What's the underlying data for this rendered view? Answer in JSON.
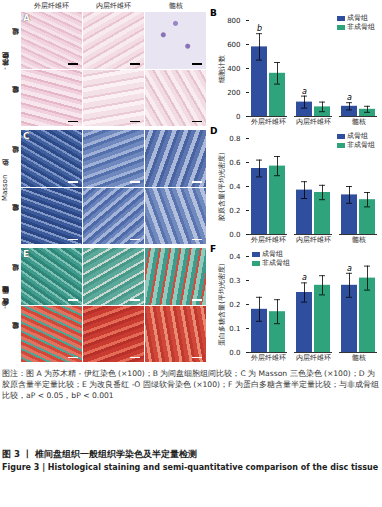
{
  "figure": {
    "columns": [
      "外层纤维环",
      "内层纤维环",
      "髓核"
    ],
    "rows": [
      "成骨组",
      "非成骨组"
    ],
    "image_panels": [
      {
        "panel": "A",
        "stain": "苏木精 - 伊红染色"
      },
      {
        "panel": "C",
        "stain": "Masson 染色"
      },
      {
        "panel": "E",
        "stain": "改良番红 -O 固绿软骨染色"
      }
    ],
    "caption": "图注：图 A 为苏木精 - 伊红染色 (×100)；B 为间盘细胞组间比较；C 为 Masson 三色染色 (×100)；D 为胶原含量半定量比较；E 为改良番红 -O 固绿软骨染色 (×100)；F 为蛋白多糖含量半定量比较；与非成骨组比较，aP < 0.05，bP < 0.001",
    "title": "图 3 丨 椎间盘组织一般组织学染色及半定量检测",
    "title_en": "Figure 3 | Histological staining and semi-quantitative comparison of the disc tissue"
  },
  "chart_data": [
    {
      "type": "bar",
      "panel": "B",
      "ylabel": "细胞计数",
      "categories": [
        "外层纤维环",
        "内层纤维环",
        "髓核"
      ],
      "series": [
        {
          "name": "成骨组",
          "color": "#2f4f9e",
          "values": [
            580,
            120,
            85
          ],
          "errors": [
            110,
            50,
            30
          ],
          "annotations": [
            "b",
            "a",
            "a"
          ]
        },
        {
          "name": "非成骨组",
          "color": "#2ea37c",
          "values": [
            360,
            80,
            60
          ],
          "errors": [
            90,
            40,
            25
          ]
        }
      ],
      "ylim": [
        0,
        800
      ],
      "yticks": [
        0,
        200,
        400,
        600,
        800
      ],
      "legend": "top-right"
    },
    {
      "type": "bar",
      "panel": "D",
      "ylabel": "胶原含量(平均光密度)",
      "categories": [
        "外层纤维环",
        "内层纤维环",
        "髓核"
      ],
      "series": [
        {
          "name": "成骨组",
          "color": "#2f4f9e",
          "values": [
            0.55,
            0.37,
            0.33
          ],
          "errors": [
            0.07,
            0.07,
            0.07
          ]
        },
        {
          "name": "非成骨组",
          "color": "#2ea37c",
          "values": [
            0.57,
            0.35,
            0.29
          ],
          "errors": [
            0.08,
            0.06,
            0.06
          ]
        }
      ],
      "ylim": [
        0,
        0.8
      ],
      "yticks": [
        {
          "value": 0,
          "label": "0.0"
        },
        {
          "value": 0.2,
          "label": "0.2"
        },
        {
          "value": 0.4,
          "label": "0.4"
        },
        {
          "value": 0.6,
          "label": "0.6"
        },
        {
          "value": 0.8,
          "label": "0.8"
        }
      ],
      "legend": "top-right"
    },
    {
      "type": "bar",
      "panel": "F",
      "ylabel": "蛋白多糖含量(平均光密度)",
      "categories": [
        "外层纤维环",
        "内层纤维环",
        "髓核"
      ],
      "series": [
        {
          "name": "成骨组",
          "color": "#2f4f9e",
          "values": [
            0.18,
            0.25,
            0.28
          ],
          "errors": [
            0.05,
            0.04,
            0.05
          ],
          "annotations": [
            null,
            "a",
            "a"
          ]
        },
        {
          "name": "非成骨组",
          "color": "#2ea37c",
          "values": [
            0.17,
            0.28,
            0.31
          ],
          "errors": [
            0.05,
            0.04,
            0.05
          ]
        }
      ],
      "ylim": [
        0,
        0.4
      ],
      "yticks": [
        {
          "value": 0,
          "label": "0.0"
        },
        {
          "value": 0.1,
          "label": "0.1"
        },
        {
          "value": 0.2,
          "label": "0.2"
        },
        {
          "value": 0.3,
          "label": "0.3"
        },
        {
          "value": 0.4,
          "label": "0.4"
        }
      ],
      "legend": "top-left"
    }
  ]
}
